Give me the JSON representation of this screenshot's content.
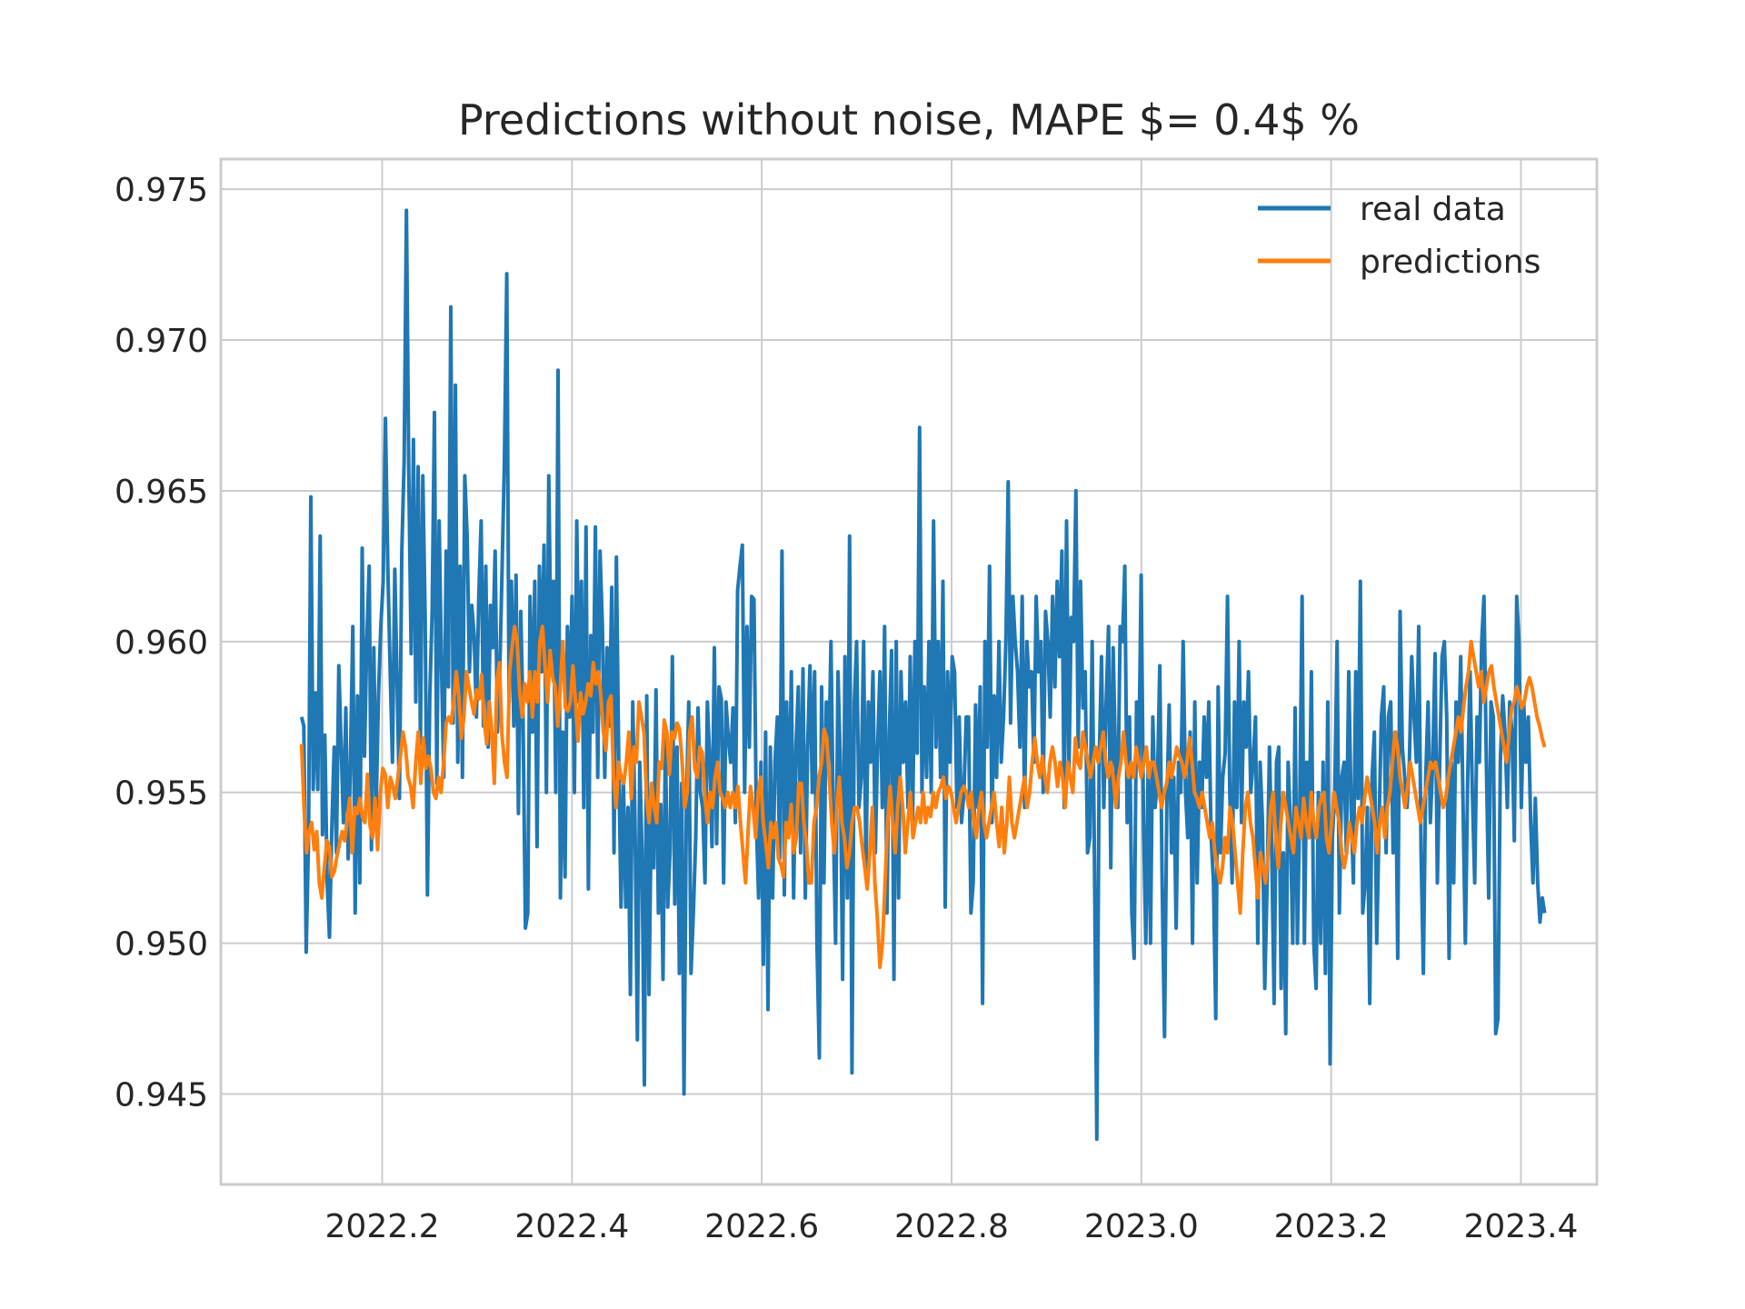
{
  "chart_data": {
    "type": "line",
    "title": "Predictions without noise, MAPE $= 0.4$ %",
    "xlabel": "",
    "ylabel": "",
    "xlim": [
      2022.03,
      2023.48
    ],
    "ylim": [
      0.942,
      0.976
    ],
    "x_ticks": [
      2022.2,
      2022.4,
      2022.6,
      2022.8,
      2023.0,
      2023.2,
      2023.4
    ],
    "x_tick_labels": [
      "2022.2",
      "2022.4",
      "2022.6",
      "2022.8",
      "2023.0",
      "2023.2",
      "2023.4"
    ],
    "y_ticks": [
      0.945,
      0.95,
      0.955,
      0.96,
      0.965,
      0.97,
      0.975
    ],
    "y_tick_labels": [
      "0.945",
      "0.950",
      "0.955",
      "0.960",
      "0.965",
      "0.970",
      "0.975"
    ],
    "grid": true,
    "legend_position": "top-right",
    "x_start": 2022.115,
    "x_end": 2023.425,
    "series": [
      {
        "name": "real data",
        "color": "#1f77b4",
        "values": [
          0.9575,
          0.9572,
          0.9497,
          0.9535,
          0.9648,
          0.9551,
          0.9583,
          0.9551,
          0.9635,
          0.9536,
          0.9569,
          0.952,
          0.9502,
          0.9538,
          0.9565,
          0.953,
          0.9592,
          0.9565,
          0.954,
          0.9578,
          0.9528,
          0.956,
          0.9605,
          0.951,
          0.9582,
          0.952,
          0.9631,
          0.9562,
          0.96,
          0.9625,
          0.9531,
          0.9598,
          0.9545,
          0.9582,
          0.9605,
          0.962,
          0.9674,
          0.9625,
          0.959,
          0.956,
          0.9624,
          0.9585,
          0.9548,
          0.963,
          0.966,
          0.9743,
          0.9655,
          0.9596,
          0.9667,
          0.958,
          0.9658,
          0.9566,
          0.9655,
          0.9608,
          0.9516,
          0.9582,
          0.961,
          0.9676,
          0.9553,
          0.964,
          0.9593,
          0.9555,
          0.963,
          0.9585,
          0.9711,
          0.9573,
          0.9685,
          0.956,
          0.9625,
          0.9555,
          0.9655,
          0.9635,
          0.959,
          0.9612,
          0.9602,
          0.9575,
          0.9615,
          0.964,
          0.9572,
          0.9625,
          0.9565,
          0.9612,
          0.9598,
          0.963,
          0.957,
          0.959,
          0.9625,
          0.966,
          0.9722,
          0.958,
          0.962,
          0.9572,
          0.9622,
          0.9543,
          0.961,
          0.9575,
          0.9505,
          0.951,
          0.9615,
          0.957,
          0.962,
          0.9532,
          0.9625,
          0.959,
          0.9632,
          0.955,
          0.9655,
          0.9595,
          0.962,
          0.955,
          0.969,
          0.9515,
          0.957,
          0.9522,
          0.9605,
          0.9575,
          0.9615,
          0.955,
          0.964,
          0.958,
          0.962,
          0.9545,
          0.9638,
          0.9518,
          0.9602,
          0.957,
          0.9638,
          0.9555,
          0.963,
          0.9605,
          0.9555,
          0.9598,
          0.9572,
          0.9618,
          0.953,
          0.9628,
          0.956,
          0.9512,
          0.9555,
          0.9512,
          0.9545,
          0.9483,
          0.958,
          0.954,
          0.9468,
          0.956,
          0.953,
          0.9453,
          0.9582,
          0.9483,
          0.9546,
          0.9525,
          0.9584,
          0.951,
          0.9546,
          0.9488,
          0.9568,
          0.9512,
          0.953,
          0.9595,
          0.9513,
          0.9565,
          0.949,
          0.9553,
          0.945,
          0.9545,
          0.958,
          0.949,
          0.951,
          0.9535,
          0.9578,
          0.955,
          0.9545,
          0.952,
          0.958,
          0.9562,
          0.9532,
          0.9598,
          0.9533,
          0.9585,
          0.9581,
          0.952,
          0.958,
          0.9568,
          0.956,
          0.9578,
          0.954,
          0.9617,
          0.9625,
          0.9632,
          0.955,
          0.9605,
          0.9565,
          0.9615,
          0.9614,
          0.954,
          0.9515,
          0.956,
          0.9493,
          0.957,
          0.9478,
          0.9565,
          0.9515,
          0.956,
          0.9575,
          0.9528,
          0.963,
          0.9516,
          0.958,
          0.954,
          0.959,
          0.9515,
          0.9565,
          0.9585,
          0.953,
          0.9591,
          0.9515,
          0.9565,
          0.9592,
          0.955,
          0.959,
          0.95,
          0.9462,
          0.9585,
          0.952,
          0.958,
          0.9558,
          0.96,
          0.954,
          0.95,
          0.959,
          0.956,
          0.9488,
          0.9595,
          0.9515,
          0.9635,
          0.9457,
          0.958,
          0.96,
          0.9545,
          0.9555,
          0.96,
          0.9524,
          0.958,
          0.956,
          0.959,
          0.953,
          0.9565,
          0.959,
          0.9545,
          0.9605,
          0.951,
          0.957,
          0.9597,
          0.9488,
          0.96,
          0.9515,
          0.959,
          0.956,
          0.958,
          0.9545,
          0.9595,
          0.954,
          0.96,
          0.9563,
          0.9671,
          0.955,
          0.9585,
          0.9555,
          0.96,
          0.955,
          0.964,
          0.9565,
          0.96,
          0.9555,
          0.962,
          0.9512,
          0.959,
          0.956,
          0.9595,
          0.959,
          0.9545,
          0.9575,
          0.954,
          0.955,
          0.9575,
          0.9575,
          0.951,
          0.952,
          0.9579,
          0.9545,
          0.9585,
          0.948,
          0.96,
          0.9565,
          0.9625,
          0.954,
          0.9582,
          0.9555,
          0.96,
          0.956,
          0.9575,
          0.96,
          0.9653,
          0.9573,
          0.9615,
          0.96,
          0.959,
          0.9565,
          0.9615,
          0.9545,
          0.96,
          0.9585,
          0.959,
          0.956,
          0.9615,
          0.959,
          0.96,
          0.955,
          0.961,
          0.96,
          0.9575,
          0.9615,
          0.9585,
          0.962,
          0.9595,
          0.963,
          0.9545,
          0.964,
          0.9555,
          0.9608,
          0.96,
          0.965,
          0.9565,
          0.962,
          0.9578,
          0.959,
          0.953,
          0.9535,
          0.96,
          0.9525,
          0.9435,
          0.956,
          0.9595,
          0.9545,
          0.958,
          0.9605,
          0.9525,
          0.9598,
          0.956,
          0.9545,
          0.9605,
          0.96,
          0.9625,
          0.954,
          0.9575,
          0.951,
          0.9495,
          0.958,
          0.956,
          0.9622,
          0.954,
          0.95,
          0.956,
          0.95,
          0.9575,
          0.9545,
          0.9555,
          0.9592,
          0.952,
          0.9469,
          0.9545,
          0.9579,
          0.953,
          0.9555,
          0.9505,
          0.956,
          0.955,
          0.96,
          0.955,
          0.9535,
          0.957,
          0.95,
          0.958,
          0.952,
          0.956,
          0.9545,
          0.9575,
          0.9555,
          0.958,
          0.9535,
          0.952,
          0.9475,
          0.9585,
          0.953,
          0.9555,
          0.9563,
          0.9615,
          0.955,
          0.952,
          0.958,
          0.9545,
          0.96,
          0.954,
          0.958,
          0.9565,
          0.959,
          0.955,
          0.956,
          0.9575,
          0.95,
          0.956,
          0.954,
          0.9485,
          0.952,
          0.9565,
          0.953,
          0.948,
          0.956,
          0.9565,
          0.9485,
          0.953,
          0.947,
          0.956,
          0.954,
          0.95,
          0.9578,
          0.95,
          0.9545,
          0.9615,
          0.95,
          0.956,
          0.9535,
          0.959,
          0.95,
          0.9485,
          0.955,
          0.95,
          0.956,
          0.949,
          0.958,
          0.946,
          0.9535,
          0.955,
          0.96,
          0.951,
          0.9555,
          0.956,
          0.953,
          0.959,
          0.9545,
          0.952,
          0.959,
          0.9548,
          0.962,
          0.951,
          0.952,
          0.9545,
          0.948,
          0.9555,
          0.957,
          0.95,
          0.954,
          0.9575,
          0.9585,
          0.953,
          0.9575,
          0.958,
          0.953,
          0.957,
          0.9495,
          0.961,
          0.9565,
          0.9555,
          0.9545,
          0.956,
          0.9595,
          0.9575,
          0.956,
          0.9605,
          0.953,
          0.949,
          0.9555,
          0.958,
          0.954,
          0.956,
          0.9596,
          0.952,
          0.956,
          0.9595,
          0.96,
          0.9575,
          0.9495,
          0.956,
          0.952,
          0.958,
          0.956,
          0.9595,
          0.9545,
          0.95,
          0.9555,
          0.959,
          0.955,
          0.952,
          0.9575,
          0.956,
          0.96,
          0.9615,
          0.956,
          0.9515,
          0.958,
          0.9575,
          0.947,
          0.9475,
          0.956,
          0.9582,
          0.957,
          0.9545,
          0.958,
          0.957,
          0.9534,
          0.9615,
          0.96,
          0.9545,
          0.958,
          0.956,
          0.9575,
          0.954,
          0.952,
          0.9548,
          0.952,
          0.9507,
          0.9515,
          0.951
        ]
      },
      {
        "name": "predictions",
        "color": "#ff7f0e",
        "values": [
          0.9566,
          0.9545,
          0.953,
          0.9537,
          0.954,
          0.9531,
          0.9537,
          0.952,
          0.9515,
          0.9525,
          0.9534,
          0.9532,
          0.9522,
          0.9524,
          0.9529,
          0.9533,
          0.9537,
          0.9534,
          0.9541,
          0.9548,
          0.953,
          0.9545,
          0.9543,
          0.9548,
          0.9542,
          0.954,
          0.9556,
          0.9539,
          0.9535,
          0.9548,
          0.9531,
          0.9549,
          0.9558,
          0.9556,
          0.9545,
          0.9555,
          0.9552,
          0.9548,
          0.9555,
          0.9562,
          0.957,
          0.9565,
          0.9555,
          0.9552,
          0.9545,
          0.956,
          0.957,
          0.9553,
          0.9568,
          0.9558,
          0.9562,
          0.9558,
          0.955,
          0.9548,
          0.9555,
          0.955,
          0.956,
          0.9573,
          0.9575,
          0.9573,
          0.958,
          0.959,
          0.9582,
          0.9568,
          0.9575,
          0.959,
          0.9585,
          0.958,
          0.9576,
          0.9584,
          0.9581,
          0.9589,
          0.9574,
          0.9566,
          0.958,
          0.957,
          0.9553,
          0.9587,
          0.9593,
          0.9569,
          0.956,
          0.9555,
          0.959,
          0.9598,
          0.9605,
          0.96,
          0.9583,
          0.9575,
          0.9586,
          0.958,
          0.959,
          0.9575,
          0.959,
          0.958,
          0.96,
          0.9605,
          0.9592,
          0.958,
          0.9597,
          0.9588,
          0.9585,
          0.9572,
          0.9585,
          0.96,
          0.9578,
          0.9577,
          0.958,
          0.9592,
          0.958,
          0.9567,
          0.9583,
          0.9576,
          0.958,
          0.9586,
          0.9582,
          0.9593,
          0.9586,
          0.959,
          0.9582,
          0.957,
          0.9564,
          0.958,
          0.9582,
          0.9555,
          0.9545,
          0.956,
          0.9555,
          0.9553,
          0.956,
          0.957,
          0.9548,
          0.9565,
          0.956,
          0.958,
          0.9575,
          0.957,
          0.9548,
          0.954,
          0.9553,
          0.9545,
          0.954,
          0.956,
          0.9558,
          0.9574,
          0.957,
          0.9556,
          0.957,
          0.9568,
          0.9573,
          0.9571,
          0.956,
          0.9545,
          0.955,
          0.957,
          0.9575,
          0.9558,
          0.9555,
          0.9565,
          0.9563,
          0.9548,
          0.954,
          0.955,
          0.9545,
          0.9555,
          0.956,
          0.955,
          0.9548,
          0.9545,
          0.955,
          0.9545,
          0.955,
          0.9545,
          0.9552,
          0.954,
          0.953,
          0.952,
          0.9537,
          0.9552,
          0.9545,
          0.9535,
          0.955,
          0.9555,
          0.954,
          0.9533,
          0.9525,
          0.954,
          0.9535,
          0.954,
          0.9528,
          0.9526,
          0.9522,
          0.954,
          0.9535,
          0.9546,
          0.953,
          0.9535,
          0.9553,
          0.9553,
          0.954,
          0.9533,
          0.952,
          0.952,
          0.954,
          0.9545,
          0.9555,
          0.956,
          0.9571,
          0.9568,
          0.9555,
          0.954,
          0.953,
          0.9545,
          0.9555,
          0.954,
          0.9535,
          0.9525,
          0.953,
          0.954,
          0.9545,
          0.9545,
          0.954,
          0.9532,
          0.9525,
          0.9518,
          0.953,
          0.9545,
          0.952,
          0.9508,
          0.9492,
          0.95,
          0.952,
          0.954,
          0.9552,
          0.954,
          0.953,
          0.9545,
          0.9555,
          0.9545,
          0.953,
          0.954,
          0.955,
          0.9535,
          0.954,
          0.9545,
          0.954,
          0.955,
          0.954,
          0.9545,
          0.9542,
          0.955,
          0.9545,
          0.955,
          0.9552,
          0.9555,
          0.9548,
          0.9552,
          0.955,
          0.9545,
          0.954,
          0.9545,
          0.955,
          0.9552,
          0.955,
          0.9545,
          0.955,
          0.954,
          0.9535,
          0.9545,
          0.955,
          0.954,
          0.9535,
          0.954,
          0.9545,
          0.955,
          0.954,
          0.9532,
          0.9545,
          0.953,
          0.954,
          0.9555,
          0.954,
          0.9535,
          0.954,
          0.9545,
          0.955,
          0.9555,
          0.9545,
          0.955,
          0.956,
          0.9568,
          0.956,
          0.9555,
          0.9562,
          0.9555,
          0.955,
          0.956,
          0.9565,
          0.956,
          0.9552,
          0.956,
          0.9555,
          0.9545,
          0.956,
          0.9555,
          0.955,
          0.9568,
          0.956,
          0.9558,
          0.957,
          0.9565,
          0.956,
          0.9555,
          0.956,
          0.9565,
          0.956,
          0.9565,
          0.957,
          0.956,
          0.9555,
          0.956,
          0.9555,
          0.9545,
          0.9555,
          0.956,
          0.957,
          0.956,
          0.9555,
          0.956,
          0.9555,
          0.9565,
          0.956,
          0.9555,
          0.956,
          0.9565,
          0.9555,
          0.956,
          0.956,
          0.9555,
          0.955,
          0.9545,
          0.955,
          0.9553,
          0.956,
          0.9555,
          0.956,
          0.9565,
          0.9562,
          0.956,
          0.9555,
          0.956,
          0.9568,
          0.956,
          0.955,
          0.9548,
          0.9545,
          0.955,
          0.9545,
          0.954,
          0.9535,
          0.954,
          0.953,
          0.9525,
          0.952,
          0.9525,
          0.9535,
          0.953,
          0.9545,
          0.954,
          0.953,
          0.952,
          0.951,
          0.953,
          0.9545,
          0.955,
          0.954,
          0.9535,
          0.9525,
          0.9515,
          0.953,
          0.9525,
          0.952,
          0.953,
          0.9545,
          0.955,
          0.9535,
          0.9525,
          0.954,
          0.955,
          0.9545,
          0.954,
          0.9535,
          0.953,
          0.9545,
          0.954,
          0.9535,
          0.9548,
          0.954,
          0.9535,
          0.955,
          0.954,
          0.9535,
          0.9545,
          0.9548,
          0.955,
          0.9535,
          0.953,
          0.954,
          0.955,
          0.9545,
          0.954,
          0.953,
          0.9525,
          0.953,
          0.954,
          0.9535,
          0.953,
          0.954,
          0.9545,
          0.954,
          0.9548,
          0.9555,
          0.955,
          0.9545,
          0.954,
          0.953,
          0.954,
          0.9545,
          0.9535,
          0.9545,
          0.955,
          0.956,
          0.957,
          0.9565,
          0.9555,
          0.955,
          0.9545,
          0.9552,
          0.956,
          0.9555,
          0.955,
          0.9545,
          0.954,
          0.9545,
          0.955,
          0.9555,
          0.956,
          0.9558,
          0.956,
          0.9555,
          0.955,
          0.9545,
          0.9548,
          0.9555,
          0.956,
          0.9565,
          0.957,
          0.9575,
          0.957,
          0.9578,
          0.9585,
          0.959,
          0.96,
          0.9595,
          0.959,
          0.9585,
          0.959,
          0.958,
          0.9585,
          0.959,
          0.9592,
          0.9585,
          0.958,
          0.9575,
          0.957,
          0.9565,
          0.956,
          0.957,
          0.9578,
          0.958,
          0.9585,
          0.9582,
          0.9578,
          0.958,
          0.9585,
          0.9588,
          0.9585,
          0.958,
          0.9575,
          0.9572,
          0.9568,
          0.9565
        ]
      }
    ]
  }
}
